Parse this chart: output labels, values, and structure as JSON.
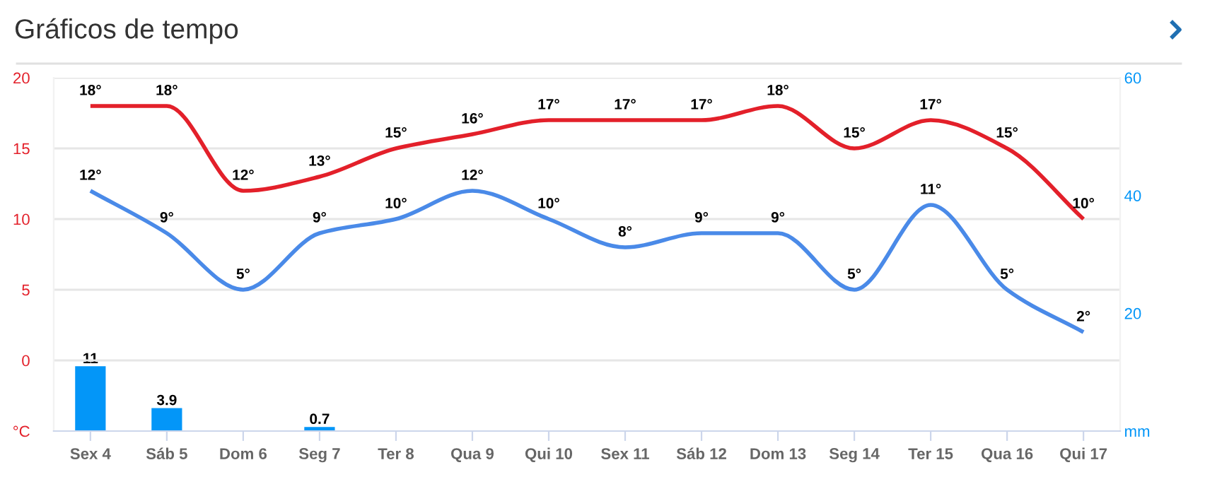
{
  "chart_data": {
    "type": "line",
    "title": "Gráficos de tempo",
    "categories": [
      "Sex 4",
      "Sáb 5",
      "Dom 6",
      "Seg 7",
      "Ter 8",
      "Qua 9",
      "Qui 10",
      "Sex 11",
      "Sáb 12",
      "Dom 13",
      "Seg 14",
      "Ter 15",
      "Qua 16",
      "Qui 17"
    ],
    "series": [
      {
        "color": "#e3202a",
        "values": [
          18,
          18,
          12,
          13,
          15,
          16,
          17,
          17,
          17,
          18,
          15,
          17,
          15,
          10
        ],
        "value_labels": [
          "18°",
          "18°",
          "12°",
          "13°",
          "15°",
          "16°",
          "17°",
          "17°",
          "17°",
          "18°",
          "15°",
          "17°",
          "15°",
          "10°"
        ]
      },
      {
        "color": "#4a8ae8",
        "values": [
          12,
          9,
          5,
          9,
          10,
          12,
          10,
          8,
          9,
          9,
          5,
          11,
          5,
          2
        ],
        "value_labels": [
          "12°",
          "9°",
          "5°",
          "9°",
          "10°",
          "12°",
          "10°",
          "8°",
          "9°",
          "9°",
          "5°",
          "11°",
          "5°",
          "2°"
        ]
      },
      {
        "type": "bar",
        "axis": "y2",
        "color": "#0396f8",
        "values": [
          11,
          3.9,
          0,
          0.7,
          0,
          0,
          0,
          0,
          0,
          0,
          0,
          0,
          0,
          0
        ],
        "value_labels": [
          "11",
          "3.9",
          null,
          "0.7",
          null,
          null,
          null,
          null,
          null,
          null,
          null,
          null,
          null,
          null
        ]
      }
    ],
    "ylim": [
      -5,
      20
    ],
    "yticks": [
      {
        "value": -5,
        "label": "°C"
      },
      0,
      5,
      10,
      15,
      20
    ],
    "y2lim": [
      0,
      60
    ],
    "y2ticks": [
      {
        "value": 0,
        "label": "mm"
      },
      20,
      40,
      60
    ],
    "grid": "y",
    "legend": false
  }
}
